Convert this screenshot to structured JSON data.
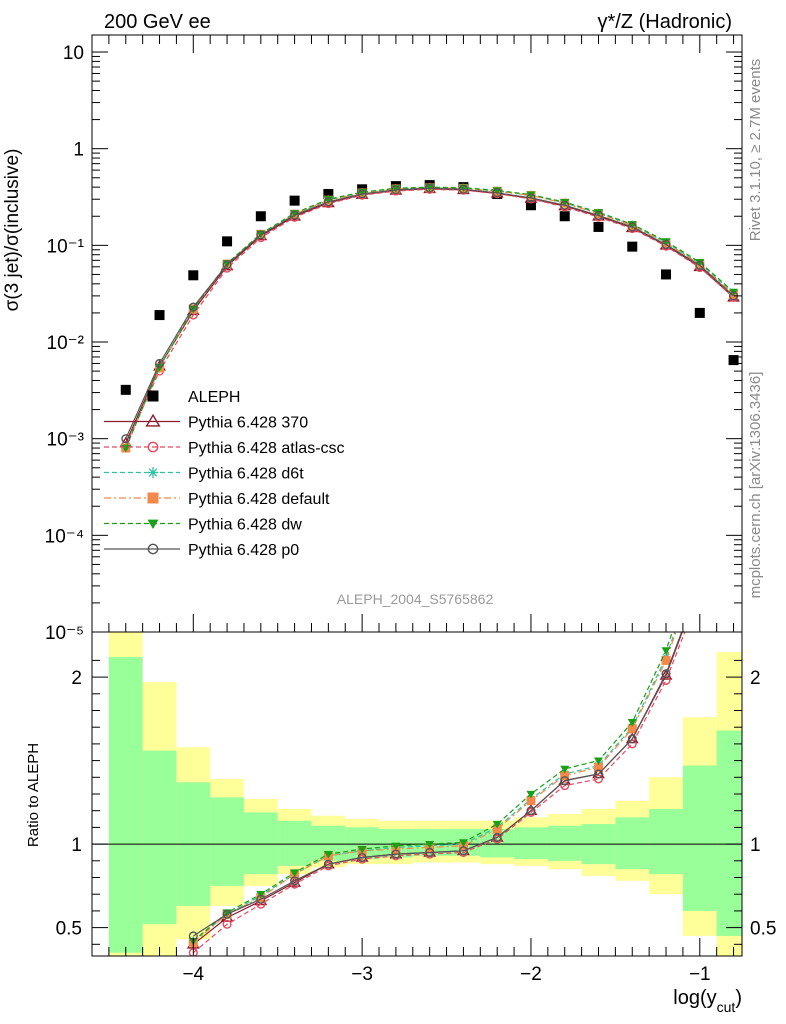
{
  "header": {
    "left": "200 GeV ee",
    "right": "γ*/Z (Hadronic)"
  },
  "side_notes": {
    "rivet": "Rivet 3.1.10, ≥ 2.7M events",
    "mcplots": "mcplots.cern.ch [arXiv:1306.3436]"
  },
  "watermark": "ALEPH_2004_S5765862",
  "chart_data": [
    {
      "type": "scatter",
      "panel": "main",
      "ylabel": "σ(3 jet)/σ(inclusive)",
      "yscale": "log",
      "xlim": [
        -4.6,
        -0.75
      ],
      "ylim": [
        1e-05,
        15
      ],
      "y_ticks": [
        "10",
        "1",
        "10⁻¹",
        "10⁻²",
        "10⁻³",
        "10⁻⁴",
        "10⁻⁵"
      ],
      "x": [
        -4.4,
        -4.2,
        -4.0,
        -3.8,
        -3.6,
        -3.4,
        -3.2,
        -3.0,
        -2.8,
        -2.6,
        -2.4,
        -2.2,
        -2.0,
        -1.8,
        -1.6,
        -1.4,
        -1.2,
        -1.0,
        -0.8
      ],
      "legend_position": "lower-left",
      "series": [
        {
          "name": "ALEPH",
          "color": "#000000",
          "marker": "square",
          "line": "none",
          "values": [
            0.0032,
            0.019,
            0.049,
            0.11,
            0.2,
            0.29,
            0.34,
            0.38,
            0.41,
            0.42,
            0.4,
            0.34,
            0.26,
            0.2,
            0.155,
            0.097,
            0.05,
            0.02,
            0.0065
          ]
        },
        {
          "name": "Pythia 6.428 370",
          "color": "#8b1a2b",
          "marker": "triangle-open",
          "line": "solid",
          "values": [
            0.0009,
            0.0056,
            0.021,
            0.061,
            0.125,
            0.2,
            0.275,
            0.335,
            0.37,
            0.385,
            0.375,
            0.345,
            0.305,
            0.255,
            0.2,
            0.152,
            0.1,
            0.06,
            0.029
          ]
        },
        {
          "name": "Pythia 6.428 atlas-csc",
          "color": "#e8495f",
          "marker": "circle-open",
          "line": "dashed",
          "values": [
            0.00085,
            0.005,
            0.019,
            0.058,
            0.12,
            0.195,
            0.27,
            0.33,
            0.365,
            0.38,
            0.372,
            0.342,
            0.302,
            0.25,
            0.196,
            0.149,
            0.098,
            0.059,
            0.029
          ]
        },
        {
          "name": "Pythia 6.428 d6t",
          "color": "#2ec4a0",
          "marker": "star",
          "line": "dashed",
          "values": [
            0.0008,
            0.0055,
            0.022,
            0.064,
            0.13,
            0.21,
            0.295,
            0.35,
            0.385,
            0.395,
            0.39,
            0.365,
            0.33,
            0.275,
            0.215,
            0.162,
            0.107,
            0.065,
            0.032
          ]
        },
        {
          "name": "Pythia 6.428 default",
          "color": "#f5884b",
          "marker": "square",
          "line": "dashdot",
          "values": [
            0.0008,
            0.0054,
            0.022,
            0.064,
            0.13,
            0.21,
            0.293,
            0.348,
            0.383,
            0.393,
            0.388,
            0.363,
            0.328,
            0.273,
            0.213,
            0.16,
            0.106,
            0.064,
            0.031
          ]
        },
        {
          "name": "Pythia 6.428 dw",
          "color": "#18a018",
          "marker": "triangle-down",
          "line": "dashed",
          "values": [
            0.0008,
            0.0055,
            0.022,
            0.065,
            0.132,
            0.215,
            0.3,
            0.355,
            0.39,
            0.4,
            0.395,
            0.37,
            0.335,
            0.28,
            0.22,
            0.165,
            0.11,
            0.067,
            0.033
          ]
        },
        {
          "name": "Pythia 6.428 p0",
          "color": "#555555",
          "marker": "circle-open",
          "line": "solid",
          "values": [
            0.001,
            0.006,
            0.023,
            0.063,
            0.128,
            0.205,
            0.282,
            0.34,
            0.375,
            0.39,
            0.38,
            0.35,
            0.31,
            0.26,
            0.204,
            0.155,
            0.102,
            0.062,
            0.03
          ]
        }
      ]
    },
    {
      "type": "line",
      "panel": "ratio",
      "xlabel": "log(y_cut)",
      "ylabel": "Ratio to ALEPH",
      "xlim": [
        -4.6,
        -0.75
      ],
      "ylim": [
        0.33,
        2.27
      ],
      "x_ticks": [
        "−4",
        "−3",
        "−2",
        "−1"
      ],
      "y_ticks": [
        "0.5",
        "1",
        "2"
      ],
      "bin_edges": [
        -4.5,
        -4.3,
        -4.1,
        -3.9,
        -3.7,
        -3.5,
        -3.3,
        -3.1,
        -2.9,
        -2.7,
        -2.5,
        -2.3,
        -2.1,
        -1.9,
        -1.7,
        -1.5,
        -1.3,
        -1.1,
        -0.9,
        -0.7
      ],
      "band_green": [
        [
          0.35,
          2.12
        ],
        [
          0.52,
          1.56
        ],
        [
          0.63,
          1.37
        ],
        [
          0.75,
          1.28
        ],
        [
          0.82,
          1.19
        ],
        [
          0.87,
          1.14
        ],
        [
          0.9,
          1.11
        ],
        [
          0.91,
          1.1
        ],
        [
          0.92,
          1.09
        ],
        [
          0.93,
          1.09
        ],
        [
          0.93,
          1.09
        ],
        [
          0.92,
          1.09
        ],
        [
          0.91,
          1.1
        ],
        [
          0.9,
          1.11
        ],
        [
          0.88,
          1.12
        ],
        [
          0.85,
          1.16
        ],
        [
          0.82,
          1.21
        ],
        [
          0.6,
          1.47
        ],
        [
          0.45,
          1.68
        ]
      ],
      "band_yellow": [
        [
          0.25,
          2.32
        ],
        [
          0.33,
          1.97
        ],
        [
          0.43,
          1.58
        ],
        [
          0.63,
          1.39
        ],
        [
          0.75,
          1.27
        ],
        [
          0.82,
          1.21
        ],
        [
          0.86,
          1.17
        ],
        [
          0.88,
          1.15
        ],
        [
          0.88,
          1.14
        ],
        [
          0.89,
          1.14
        ],
        [
          0.89,
          1.14
        ],
        [
          0.88,
          1.14
        ],
        [
          0.87,
          1.16
        ],
        [
          0.85,
          1.18
        ],
        [
          0.81,
          1.21
        ],
        [
          0.78,
          1.26
        ],
        [
          0.7,
          1.4
        ],
        [
          0.45,
          1.76
        ],
        [
          0.33,
          2.15
        ]
      ],
      "x": [
        -4.0,
        -3.8,
        -3.6,
        -3.4,
        -3.2,
        -3.0,
        -2.8,
        -2.6,
        -2.4,
        -2.2,
        -2.0,
        -1.8,
        -1.6,
        -1.4,
        -1.2,
        -1.0
      ],
      "reference_line": 1,
      "series": [
        {
          "name": "Pythia 6.428 370",
          "color": "#8b1a2b",
          "values": [
            0.4,
            0.56,
            0.66,
            0.77,
            0.88,
            0.92,
            0.94,
            0.95,
            0.96,
            1.04,
            1.2,
            1.38,
            1.42,
            1.63,
            2.01,
            2.55
          ]
        },
        {
          "name": "Pythia 6.428 atlas-csc",
          "color": "#e8495f",
          "values": [
            0.35,
            0.52,
            0.64,
            0.76,
            0.87,
            0.91,
            0.93,
            0.94,
            0.95,
            1.03,
            1.19,
            1.35,
            1.39,
            1.6,
            1.98,
            2.5
          ]
        },
        {
          "name": "Pythia 6.428 d6t",
          "color": "#2ec4a0",
          "values": [
            0.42,
            0.58,
            0.69,
            0.82,
            0.93,
            0.96,
            0.98,
            0.99,
            1.0,
            1.1,
            1.27,
            1.42,
            1.47,
            1.7,
            2.12,
            2.7
          ]
        },
        {
          "name": "Pythia 6.428 default",
          "color": "#f5884b",
          "values": [
            0.41,
            0.58,
            0.68,
            0.82,
            0.93,
            0.96,
            0.97,
            0.98,
            0.99,
            1.09,
            1.26,
            1.41,
            1.46,
            1.69,
            2.1,
            2.68
          ]
        },
        {
          "name": "Pythia 6.428 dw",
          "color": "#18a018",
          "values": [
            0.42,
            0.59,
            0.7,
            0.83,
            0.94,
            0.97,
            0.99,
            1.0,
            1.01,
            1.12,
            1.3,
            1.45,
            1.5,
            1.73,
            2.16,
            2.75
          ]
        },
        {
          "name": "Pythia 6.428 p0",
          "color": "#555555",
          "values": [
            0.45,
            0.58,
            0.67,
            0.78,
            0.88,
            0.92,
            0.94,
            0.95,
            0.96,
            1.04,
            1.2,
            1.38,
            1.42,
            1.63,
            2.02,
            2.56
          ]
        }
      ]
    }
  ]
}
